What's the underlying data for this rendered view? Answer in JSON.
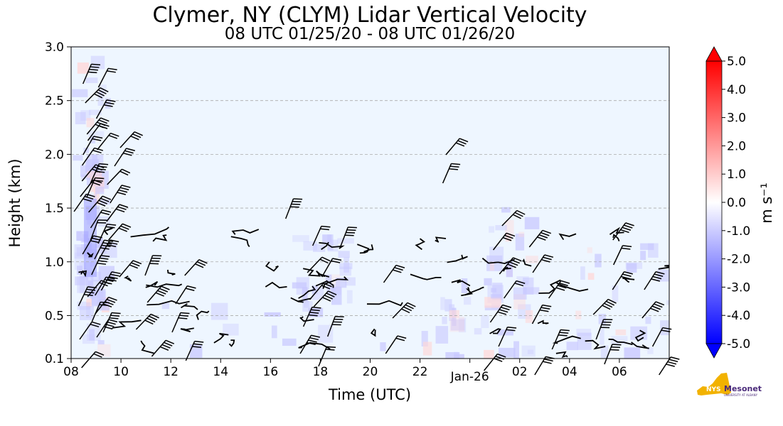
{
  "chart_data": {
    "type": "heatmap",
    "title": "Clymer, NY (CLYM) Lidar Vertical Velocity",
    "subtitle": "08 UTC 01/25/20 - 08 UTC 01/26/20",
    "xlabel": "Time (UTC)",
    "ylabel": "Height (km)",
    "x_tick_labels": [
      "08",
      "10",
      "12",
      "14",
      "16",
      "18",
      "20",
      "22",
      "Jan-26",
      "02",
      "04",
      "06"
    ],
    "y_tick_labels": [
      "0.1",
      "0.5",
      "1.0",
      "1.5",
      "2.0",
      "2.5",
      "3.0"
    ],
    "y_ticks": [
      0.1,
      0.5,
      1.0,
      1.5,
      2.0,
      2.5,
      3.0
    ],
    "ylim": [
      0.1,
      3.0
    ],
    "grid": "horizontal dashed",
    "colorbar": {
      "label": "m s⁻¹",
      "range": [
        -5.0,
        5.0
      ],
      "tick_labels": [
        "5.0",
        "4.0",
        "3.0",
        "2.0",
        "1.0",
        "0.0",
        "-1.0",
        "-2.0",
        "-3.0",
        "-4.0",
        "-5.0"
      ],
      "colors": {
        "low": "#0000ff",
        "mid": "#ffffff",
        "high": "#ff0000"
      }
    },
    "background_color": "#eef6ff"
  },
  "logo": {
    "text": "Mesonet",
    "prefix": "NYS",
    "subtext": "UNIVERSITY AT ALBANY"
  }
}
